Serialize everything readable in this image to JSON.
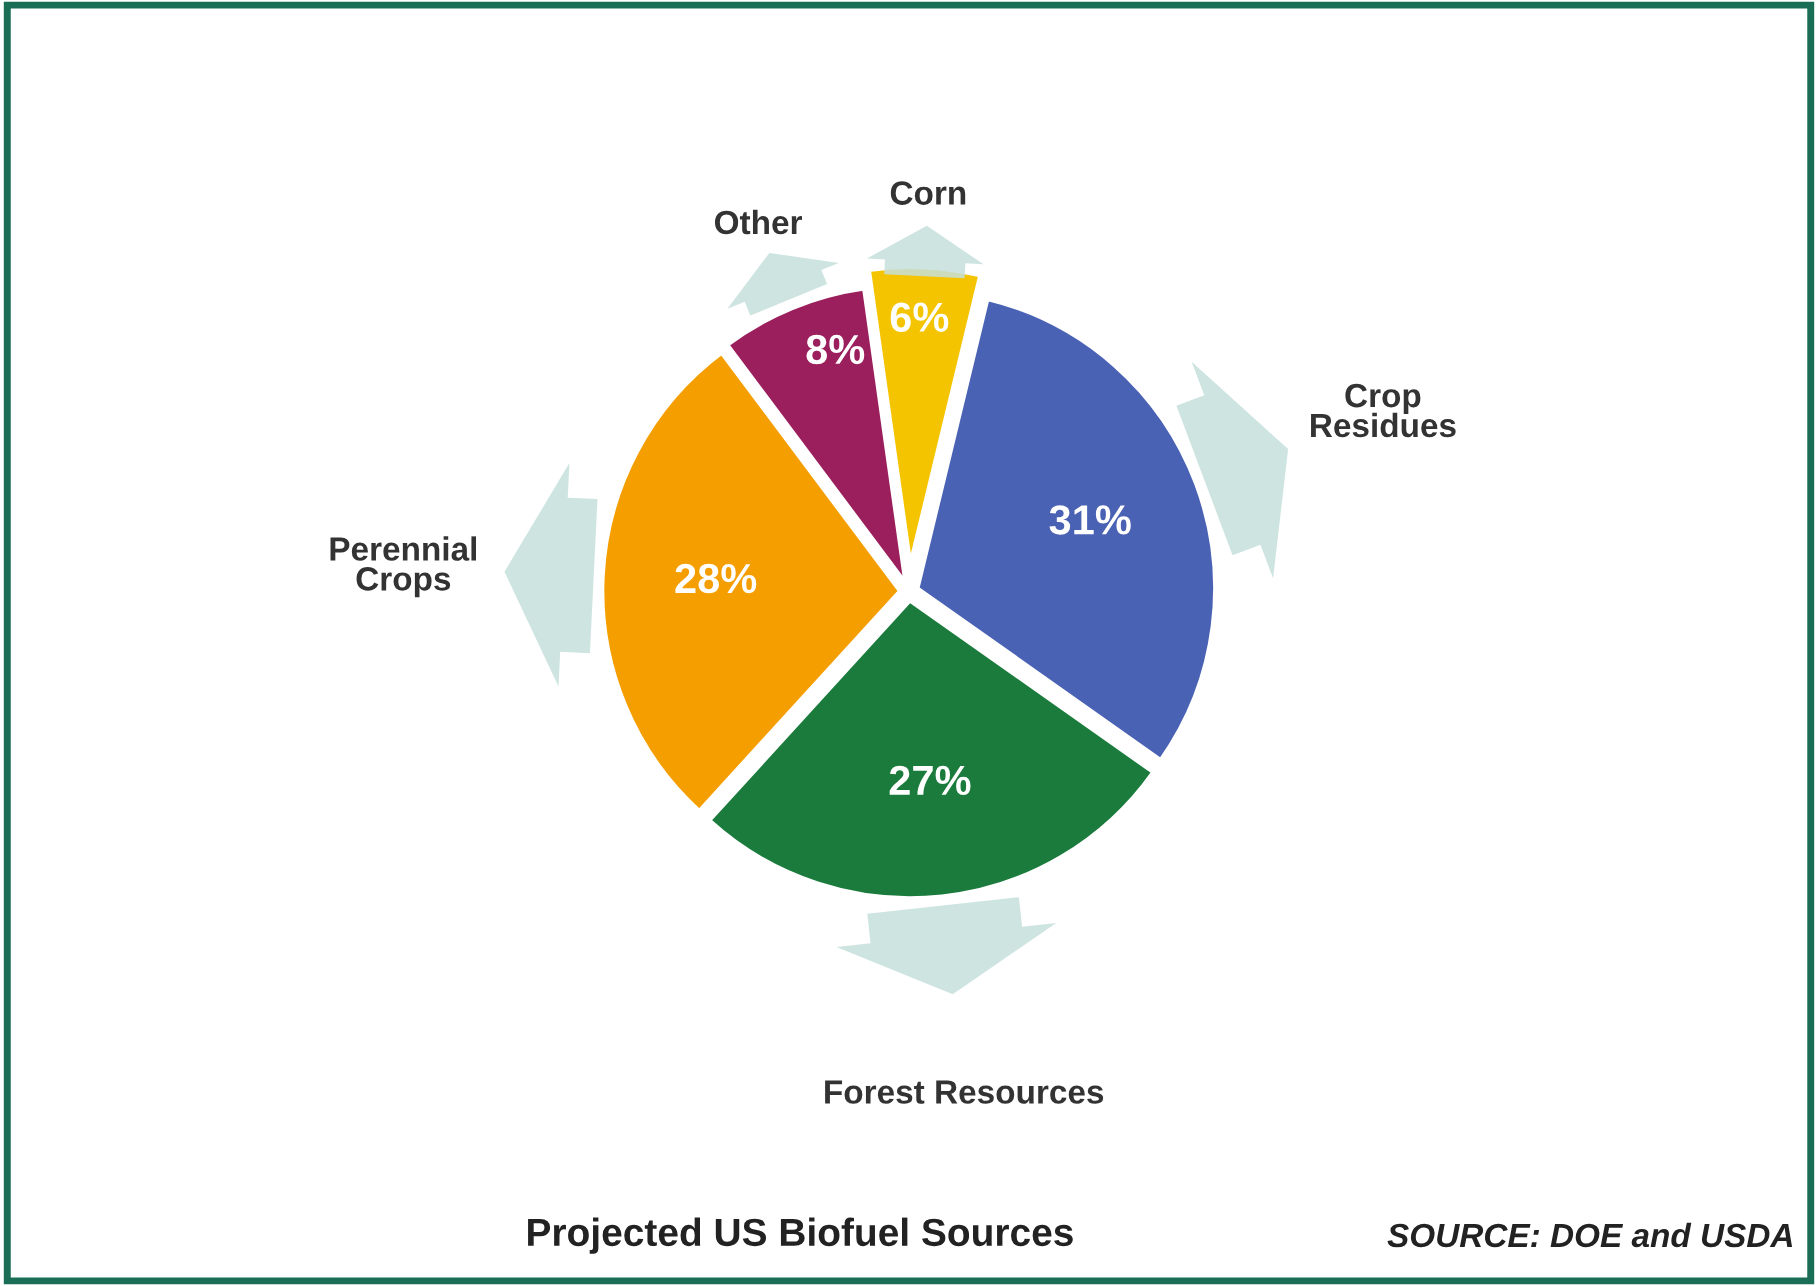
{
  "chart_data": {
    "type": "pie",
    "title": "Projected US Biofuel Sources",
    "categories": [
      "Corn",
      "Crop\nResidues",
      "Forest Resources",
      "Perennial\nCrops",
      "Other"
    ],
    "values": [
      6,
      31,
      27,
      28,
      8
    ],
    "value_labels": [
      "6%",
      "31%",
      "27%",
      "28%",
      "8%"
    ],
    "colors": [
      "#f5c400",
      "#4a62b4",
      "#1b7b3c",
      "#f59e00",
      "#9a1f5c"
    ],
    "annotations": [
      "SOURCE: DOE and USDA"
    ],
    "legend": false
  }
}
